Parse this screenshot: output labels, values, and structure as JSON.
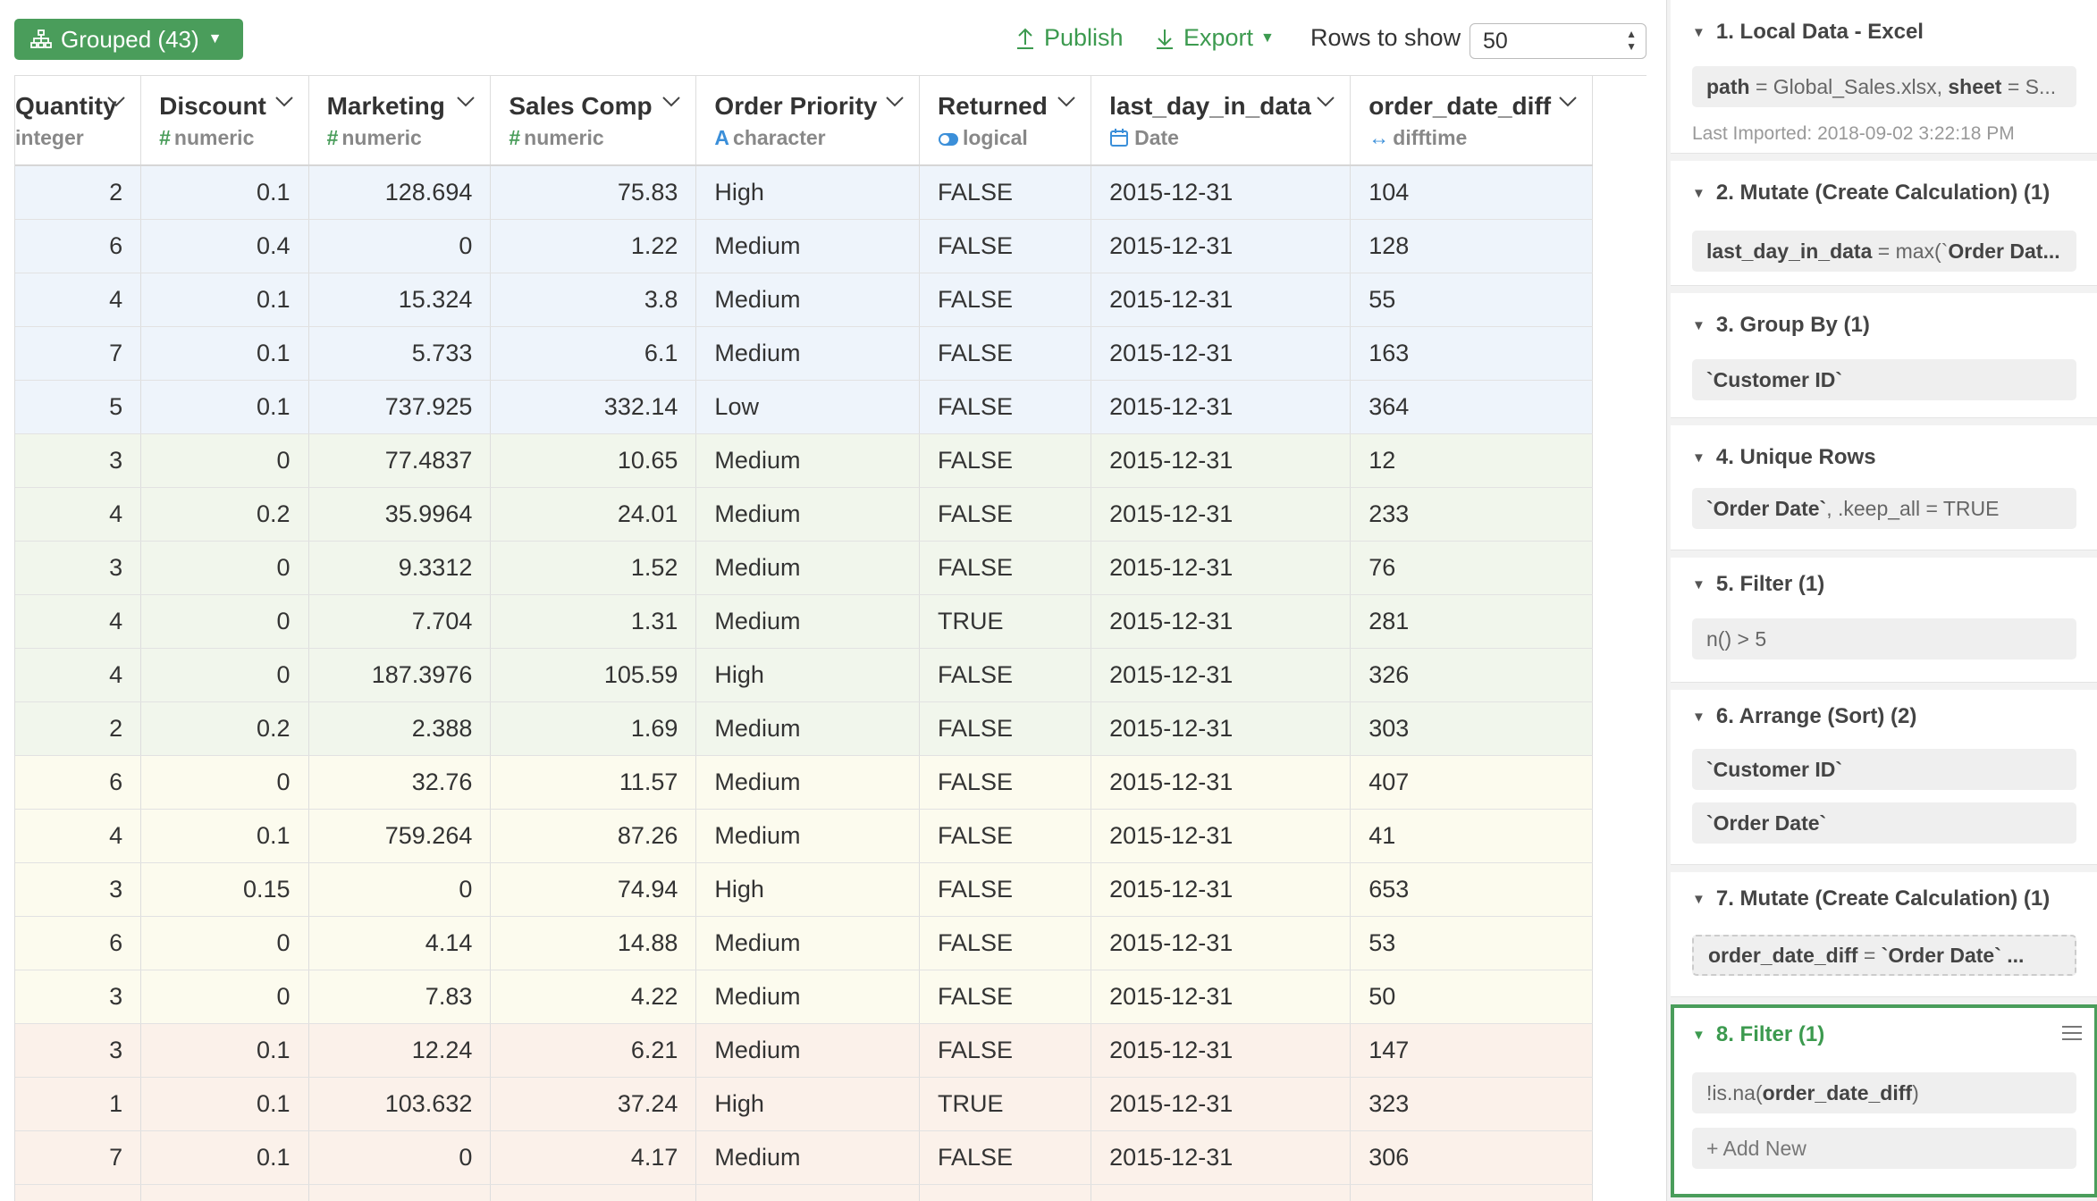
{
  "toolbar": {
    "grouped_label": "Grouped (43)",
    "publish_label": "Publish",
    "export_label": "Export",
    "rows_label": "Rows to show",
    "rows_value": "50"
  },
  "table": {
    "columns": [
      {
        "name": "Quantity",
        "type": "integer",
        "type_icon": ""
      },
      {
        "name": "Discount",
        "type": "numeric",
        "type_icon": "#"
      },
      {
        "name": "Marketing",
        "type": "numeric",
        "type_icon": "#"
      },
      {
        "name": "Sales Comp",
        "type": "numeric",
        "type_icon": "#"
      },
      {
        "name": "Order Priority",
        "type": "character",
        "type_icon": "A"
      },
      {
        "name": "Returned",
        "type": "logical",
        "type_icon": "toggle-icon"
      },
      {
        "name": "last_day_in_data",
        "type": "Date",
        "type_icon": "calendar-icon"
      },
      {
        "name": "order_date_diff",
        "type": "difftime",
        "type_icon": "↔"
      }
    ],
    "rows": [
      {
        "group": 1,
        "cells": [
          "2",
          "0.1",
          "128.694",
          "75.83",
          "High",
          "FALSE",
          "2015-12-31",
          "104"
        ]
      },
      {
        "group": 1,
        "cells": [
          "6",
          "0.4",
          "0",
          "1.22",
          "Medium",
          "FALSE",
          "2015-12-31",
          "128"
        ]
      },
      {
        "group": 1,
        "cells": [
          "4",
          "0.1",
          "15.324",
          "3.8",
          "Medium",
          "FALSE",
          "2015-12-31",
          "55"
        ]
      },
      {
        "group": 1,
        "cells": [
          "7",
          "0.1",
          "5.733",
          "6.1",
          "Medium",
          "FALSE",
          "2015-12-31",
          "163"
        ]
      },
      {
        "group": 1,
        "cells": [
          "5",
          "0.1",
          "737.925",
          "332.14",
          "Low",
          "FALSE",
          "2015-12-31",
          "364"
        ]
      },
      {
        "group": 2,
        "cells": [
          "3",
          "0",
          "77.4837",
          "10.65",
          "Medium",
          "FALSE",
          "2015-12-31",
          "12"
        ]
      },
      {
        "group": 2,
        "cells": [
          "4",
          "0.2",
          "35.9964",
          "24.01",
          "Medium",
          "FALSE",
          "2015-12-31",
          "233"
        ]
      },
      {
        "group": 2,
        "cells": [
          "3",
          "0",
          "9.3312",
          "1.52",
          "Medium",
          "FALSE",
          "2015-12-31",
          "76"
        ]
      },
      {
        "group": 2,
        "cells": [
          "4",
          "0",
          "7.704",
          "1.31",
          "Medium",
          "TRUE",
          "2015-12-31",
          "281"
        ]
      },
      {
        "group": 2,
        "cells": [
          "4",
          "0",
          "187.3976",
          "105.59",
          "High",
          "FALSE",
          "2015-12-31",
          "326"
        ]
      },
      {
        "group": 2,
        "cells": [
          "2",
          "0.2",
          "2.388",
          "1.69",
          "Medium",
          "FALSE",
          "2015-12-31",
          "303"
        ]
      },
      {
        "group": 3,
        "cells": [
          "6",
          "0",
          "32.76",
          "11.57",
          "Medium",
          "FALSE",
          "2015-12-31",
          "407"
        ]
      },
      {
        "group": 3,
        "cells": [
          "4",
          "0.1",
          "759.264",
          "87.26",
          "Medium",
          "FALSE",
          "2015-12-31",
          "41"
        ]
      },
      {
        "group": 3,
        "cells": [
          "3",
          "0.15",
          "0",
          "74.94",
          "High",
          "FALSE",
          "2015-12-31",
          "653"
        ]
      },
      {
        "group": 3,
        "cells": [
          "6",
          "0",
          "4.14",
          "14.88",
          "Medium",
          "FALSE",
          "2015-12-31",
          "53"
        ]
      },
      {
        "group": 3,
        "cells": [
          "3",
          "0",
          "7.83",
          "4.22",
          "Medium",
          "FALSE",
          "2015-12-31",
          "50"
        ]
      },
      {
        "group": 4,
        "cells": [
          "3",
          "0.1",
          "12.24",
          "6.21",
          "Medium",
          "FALSE",
          "2015-12-31",
          "147"
        ]
      },
      {
        "group": 4,
        "cells": [
          "1",
          "0.1",
          "103.632",
          "37.24",
          "High",
          "TRUE",
          "2015-12-31",
          "323"
        ]
      },
      {
        "group": 4,
        "cells": [
          "7",
          "0.1",
          "0",
          "4.17",
          "Medium",
          "FALSE",
          "2015-12-31",
          "306"
        ]
      },
      {
        "group": 4,
        "cells": [
          "",
          "",
          "",
          "",
          "",
          "",
          "",
          ""
        ]
      }
    ]
  },
  "steps": {
    "s1": {
      "title": "1. Local Data - Excel",
      "key1": "path",
      "val1": " = Global_Sales.xlsx, ",
      "key2": "sheet",
      "val2": " = S...",
      "note": "Last Imported: 2018-09-02 3:22:18 PM"
    },
    "s2": {
      "title": "2. Mutate (Create Calculation) (1)",
      "key": "last_day_in_data",
      "val": " = max(`",
      "key2": "Order Dat..."
    },
    "s3": {
      "title": "3. Group By (1)",
      "box": "`Customer ID`"
    },
    "s4": {
      "title": "4. Unique Rows",
      "key": "`Order Date`",
      "val": ", .keep_all = TRUE"
    },
    "s5": {
      "title": "5. Filter (1)",
      "box": "n() > 5"
    },
    "s6": {
      "title": "6. Arrange (Sort) (2)",
      "box1": "`Customer ID`",
      "box2": "`Order Date`"
    },
    "s7": {
      "title": "7. Mutate (Create Calculation) (1)",
      "key": "order_date_diff",
      "val": " = ",
      "key2": "`Order Date` ..."
    },
    "s8": {
      "title": "8. Filter (1)",
      "pre": "!is.na(",
      "key": "order_date_diff",
      "post": ")",
      "add": "+ Add New"
    }
  },
  "colors": {
    "accent": "#4a9d5b",
    "group1": "#eef4fb",
    "group2": "#f1f6ec",
    "group3": "#fcfbee",
    "group4": "#fbf1ea"
  }
}
